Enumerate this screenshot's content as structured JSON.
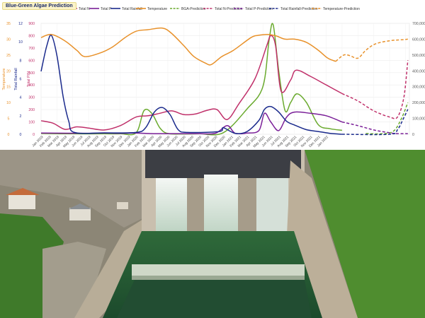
{
  "header": {
    "title": "Blue-Green Algae Prediction"
  },
  "photo": {
    "description_icon": "dam-spillway-photo"
  },
  "chart_data": {
    "type": "line",
    "title": "",
    "x": [
      "Jan 2019",
      "Feb 2019",
      "Mar 2019",
      "Apr 2019",
      "May 2019",
      "Jun 2019",
      "Jul 2019",
      "Aug 2019",
      "Sep 2019",
      "Oct 2019",
      "Nov 2019",
      "Dec 2019",
      "Jan 2020",
      "Feb 2020",
      "Mar 2020",
      "Apr 2020",
      "May 2020",
      "Jun 2020",
      "Jul 2020",
      "Aug 2020",
      "Sep 2020",
      "Oct 2020",
      "Nov 2020",
      "Dec 2020",
      "Jan 2021",
      "Feb 2021",
      "Mar 2021",
      "Apr 2021",
      "May 2021",
      "Jun 2021",
      "Jul 2021",
      "Aug 2021",
      "Sep 2021",
      "Oct 2021",
      "Nov 2021",
      "Dec 2021",
      "Jan 2022"
    ],
    "axes": {
      "temperature": {
        "label": "Temperature",
        "color": "#e8912a",
        "ticks": [
          0,
          5,
          10,
          15,
          20,
          25,
          30,
          35
        ],
        "range": [
          0,
          35
        ]
      },
      "rainfall": {
        "label": "Total Rainfall",
        "color": "#1a2a8c",
        "ticks": [
          0,
          2,
          4,
          6,
          8,
          10,
          12
        ],
        "range": [
          0,
          12
        ]
      },
      "ppb": {
        "label": "Total P/N",
        "color": "#c0306a",
        "ticks": [
          0,
          100,
          200,
          300,
          400,
          500,
          600,
          700,
          800,
          900
        ],
        "range": [
          0,
          900
        ]
      },
      "bga": {
        "label": "",
        "color": "#555555",
        "ticks": [
          "0",
          "100,000",
          "200,000",
          "300,000",
          "400,000",
          "500,000",
          "600,000",
          "700,000"
        ],
        "range": [
          0,
          700000
        ]
      }
    },
    "series": [
      {
        "name": "BGA",
        "color": "#6aaa2e",
        "axis": "bga",
        "dashed": false,
        "values": [
          [
            0,
            5000
          ],
          [
            4,
            3000
          ],
          [
            8,
            3000
          ],
          [
            10,
            3000
          ],
          [
            12,
            10000
          ],
          [
            13,
            150000
          ],
          [
            14,
            130000
          ],
          [
            15,
            40000
          ],
          [
            16,
            5000
          ],
          [
            18,
            2000
          ],
          [
            20,
            3000
          ],
          [
            23,
            10000
          ],
          [
            26,
            160000
          ],
          [
            28,
            300000
          ],
          [
            28.8,
            600000
          ],
          [
            29.3,
            690000
          ],
          [
            30,
            400000
          ],
          [
            30.8,
            150000
          ],
          [
            31.5,
            200000
          ],
          [
            32.3,
            255000
          ],
          [
            33.5,
            200000
          ],
          [
            35,
            60000
          ],
          [
            36.5,
            35000
          ],
          [
            38,
            25000
          ]
        ]
      },
      {
        "name": "Total N",
        "color": "#c0306a",
        "axis": "ppb",
        "dashed": false,
        "values": [
          [
            0,
            110
          ],
          [
            1.5,
            90
          ],
          [
            3,
            40
          ],
          [
            4.5,
            60
          ],
          [
            6,
            50
          ],
          [
            8,
            35
          ],
          [
            10,
            70
          ],
          [
            12,
            140
          ],
          [
            13.5,
            150
          ],
          [
            15,
            170
          ],
          [
            16.5,
            190
          ],
          [
            18,
            160
          ],
          [
            19.5,
            165
          ],
          [
            21,
            195
          ],
          [
            22.2,
            200
          ],
          [
            23.5,
            120
          ],
          [
            25,
            250
          ],
          [
            27,
            450
          ],
          [
            28.5,
            720
          ],
          [
            29,
            800
          ],
          [
            29.6,
            720
          ],
          [
            30.3,
            350
          ],
          [
            31.5,
            440
          ],
          [
            32.2,
            520
          ],
          [
            34,
            470
          ],
          [
            36,
            400
          ],
          [
            38,
            330
          ]
        ]
      },
      {
        "name": "Total P",
        "color": "#7a1f98",
        "axis": "ppb",
        "dashed": false,
        "values": [
          [
            0,
            10
          ],
          [
            6,
            8
          ],
          [
            8,
            10
          ],
          [
            10,
            8
          ],
          [
            12,
            10
          ],
          [
            14,
            5
          ],
          [
            17,
            5
          ],
          [
            20,
            5
          ],
          [
            22,
            8
          ],
          [
            23.5,
            70
          ],
          [
            24.5,
            8
          ],
          [
            26,
            10
          ],
          [
            27.5,
            30
          ],
          [
            28.2,
            170
          ],
          [
            29,
            100
          ],
          [
            30,
            30
          ],
          [
            31,
            140
          ],
          [
            32,
            180
          ],
          [
            34,
            170
          ],
          [
            36,
            150
          ],
          [
            38,
            100
          ]
        ]
      },
      {
        "name": "Total Rainfall",
        "color": "#1a2a8c",
        "axis": "rainfall",
        "dashed": false,
        "values": [
          [
            0,
            6.8
          ],
          [
            0.7,
            9.5
          ],
          [
            1.3,
            10.7
          ],
          [
            2,
            8.5
          ],
          [
            2.8,
            4
          ],
          [
            3.5,
            1.4
          ],
          [
            4.2,
            0.2
          ],
          [
            8,
            0.15
          ],
          [
            12,
            0.2
          ],
          [
            13.2,
            0.7
          ],
          [
            14.3,
            2.4
          ],
          [
            15.3,
            2.9
          ],
          [
            16.3,
            2.1
          ],
          [
            17.3,
            0.5
          ],
          [
            18.5,
            0.2
          ],
          [
            22.5,
            0.3
          ],
          [
            23,
            0.7
          ],
          [
            24.5,
            0.1
          ],
          [
            26,
            0.3
          ],
          [
            27.5,
            1.5
          ],
          [
            28.2,
            2.7
          ],
          [
            29,
            3
          ],
          [
            30,
            2.4
          ],
          [
            31,
            1.4
          ],
          [
            32,
            1
          ],
          [
            33.5,
            0.5
          ],
          [
            35,
            0.3
          ],
          [
            36.5,
            0.1
          ],
          [
            38,
            0
          ]
        ]
      },
      {
        "name": "Temperature",
        "color": "#e8912a",
        "axis": "temperature",
        "dashed": false,
        "values": [
          [
            0,
            30.5
          ],
          [
            1.3,
            31.5
          ],
          [
            3,
            29.5
          ],
          [
            4.5,
            26.5
          ],
          [
            5.5,
            24.5
          ],
          [
            7.3,
            25.5
          ],
          [
            9,
            27.5
          ],
          [
            10.6,
            30.5
          ],
          [
            12,
            32.5
          ],
          [
            13.5,
            33
          ],
          [
            15.3,
            33.5
          ],
          [
            16.4,
            32
          ],
          [
            18,
            28
          ],
          [
            19.3,
            24.5
          ],
          [
            20.7,
            22.5
          ],
          [
            21.5,
            22
          ],
          [
            22.8,
            24.5
          ],
          [
            24.3,
            26.5
          ],
          [
            26.5,
            30.5
          ],
          [
            27.4,
            31.2
          ],
          [
            28.6,
            31.5
          ],
          [
            29.7,
            31
          ],
          [
            30.8,
            30
          ],
          [
            32,
            30
          ],
          [
            33.5,
            29
          ],
          [
            35,
            26.5
          ],
          [
            36.2,
            24
          ],
          [
            37.2,
            23
          ]
        ]
      },
      {
        "name": "BGA-Prediction",
        "color": "#6aaa2e",
        "axis": "bga",
        "dashed": true,
        "values": [
          [
            41,
            5000
          ],
          [
            43,
            3000
          ],
          [
            44.5,
            20000
          ],
          [
            45.5,
            100000
          ],
          [
            46.3,
            200000
          ]
        ]
      },
      {
        "name": "Total N-Prediction",
        "color": "#c0306a",
        "axis": "ppb",
        "dashed": true,
        "values": [
          [
            38,
            330
          ],
          [
            40,
            270
          ],
          [
            42,
            190
          ],
          [
            44,
            140
          ],
          [
            45,
            140
          ],
          [
            45.8,
            300
          ],
          [
            46.3,
            600
          ]
        ]
      },
      {
        "name": "Total P-Prediction",
        "color": "#7a1f98",
        "axis": "ppb",
        "dashed": true,
        "values": [
          [
            38,
            100
          ],
          [
            40,
            70
          ],
          [
            42,
            35
          ],
          [
            44,
            12
          ],
          [
            45,
            5
          ],
          [
            46.3,
            5
          ]
        ]
      },
      {
        "name": "Total Rainfall-Prediction",
        "color": "#1a2a8c",
        "axis": "rainfall",
        "dashed": true,
        "values": [
          [
            38,
            0
          ],
          [
            44,
            0
          ],
          [
            45,
            0.5
          ],
          [
            45.8,
            1.8
          ],
          [
            46.3,
            2.7
          ]
        ]
      },
      {
        "name": "Temperature-Prediction",
        "color": "#e8912a",
        "axis": "temperature",
        "dashed": true,
        "values": [
          [
            37.2,
            23
          ],
          [
            38.2,
            25
          ],
          [
            39,
            24.8
          ],
          [
            40,
            24
          ],
          [
            41,
            26.5
          ],
          [
            42.2,
            28.5
          ],
          [
            44,
            29.5
          ],
          [
            45.5,
            29.8
          ],
          [
            46.3,
            30
          ]
        ]
      }
    ],
    "grid": true,
    "legend_position": "top"
  }
}
